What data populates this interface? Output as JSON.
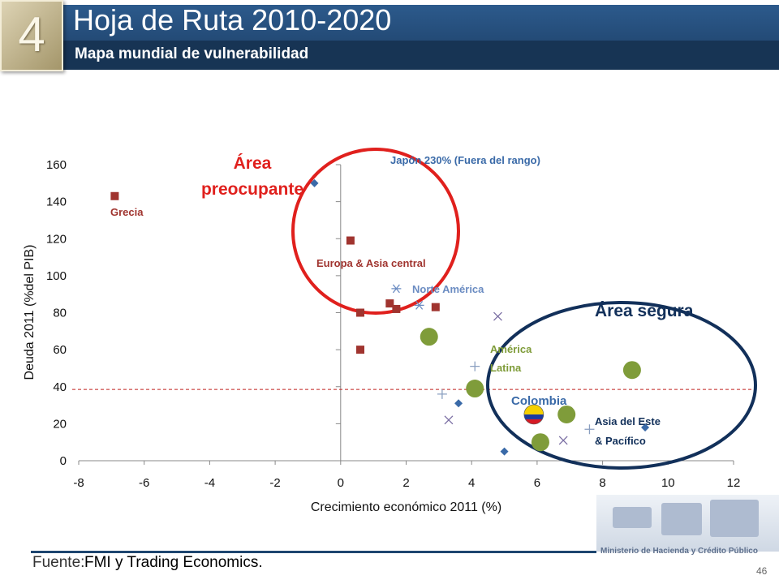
{
  "header": {
    "section_number": "4",
    "title": "Hoja de Ruta 2010-2020",
    "subtitle": "Mapa mundial de vulnerabilidad"
  },
  "footer": {
    "source_label": "Fuente:",
    "source_text": "FMI y Trading Economics.",
    "ministry": "Ministerio de Hacienda y Crédito Público",
    "page_number": "46"
  },
  "colors": {
    "header_blue": "#2c5a8c",
    "europe_series": "#a0342f",
    "america_latina_series": "#7f9c3a",
    "asia_series": "#3a6aa8",
    "norte_america_series": "#6b8cc2",
    "zone_bad": "#e0201d",
    "zone_good": "#12305a",
    "threshold_line": "#c0201d"
  },
  "chart_data": {
    "type": "scatter",
    "xlabel": "Crecimiento económico 2011 (%)",
    "ylabel": "Deuda 2011 (%del PIB)",
    "xlim": [
      -8,
      12
    ],
    "ylim": [
      0,
      160
    ],
    "xticks": [
      "-8",
      "-6",
      "-4",
      "-2",
      "0",
      "2",
      "4",
      "6",
      "8",
      "10",
      "12"
    ],
    "yticks": [
      "0",
      "20",
      "40",
      "60",
      "80",
      "100",
      "120",
      "140",
      "160"
    ],
    "threshold_y": 38.5,
    "series": [
      {
        "key": "europa",
        "marker": "square",
        "color": "#a0342f",
        "points": [
          [
            -6.9,
            143
          ],
          [
            0.3,
            119
          ],
          [
            0.6,
            80
          ],
          [
            0.6,
            60
          ],
          [
            1.5,
            85
          ],
          [
            1.7,
            82
          ],
          [
            2.9,
            83
          ]
        ]
      },
      {
        "key": "norte",
        "marker": "star",
        "color": "#6b8cc2",
        "points": [
          [
            1.7,
            93
          ],
          [
            2.4,
            84
          ]
        ]
      },
      {
        "key": "xmark",
        "marker": "x",
        "color": "#7a6ea3",
        "points": [
          [
            4.8,
            78
          ],
          [
            3.3,
            22
          ],
          [
            6.8,
            11
          ]
        ]
      },
      {
        "key": "plus",
        "marker": "plus",
        "color": "#8a9fc0",
        "points": [
          [
            4.1,
            51
          ],
          [
            3.1,
            36
          ],
          [
            7.6,
            17
          ]
        ]
      },
      {
        "key": "latina",
        "marker": "circle",
        "color": "#7f9c3a",
        "points": [
          [
            2.7,
            67
          ],
          [
            4.1,
            39
          ],
          [
            8.9,
            49
          ],
          [
            6.9,
            25
          ],
          [
            6.1,
            10
          ]
        ]
      },
      {
        "key": "asia",
        "marker": "diamond",
        "color": "#3a6aa8",
        "points": [
          [
            -0.8,
            150
          ],
          [
            3.6,
            31
          ],
          [
            5.0,
            5
          ],
          [
            9.3,
            18
          ]
        ]
      }
    ],
    "colombia_point": [
      5.9,
      25
    ],
    "labels": {
      "grecia": "Grecia",
      "europa": "Europa & Asia central",
      "norte_america": "Norte América",
      "america_latina_1": "América",
      "america_latina_2": "Latina",
      "colombia": "Colombia",
      "asia_1": "Asia del Este",
      "asia_2": "& Pacífico",
      "japon": "Japón 230% (Fuera del rango)",
      "area_preocupante_1": "Área",
      "area_preocupante_2": "preocupante",
      "area_segura": "Área segura"
    }
  }
}
